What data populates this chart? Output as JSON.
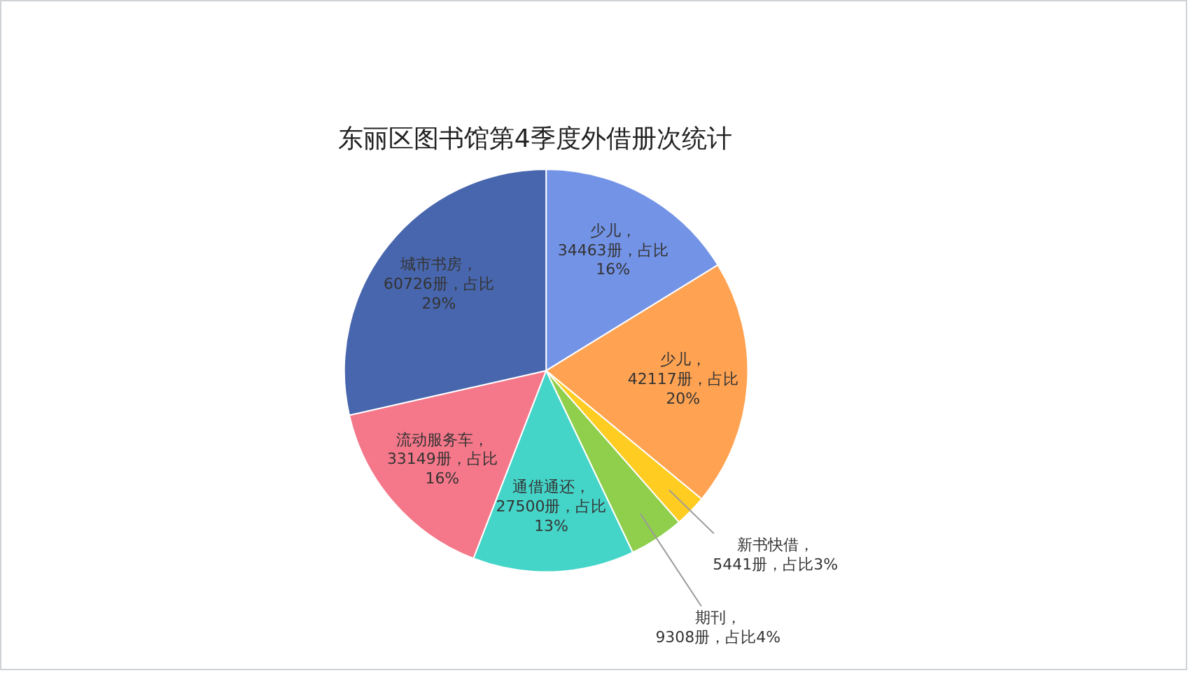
{
  "chart_data": {
    "type": "pie",
    "title": "东丽区图书馆第4季度外借册次统计",
    "categories": [
      "少儿",
      "少儿",
      "新书快借",
      "期刊",
      "通借通还",
      "流动服务车",
      "城市书房"
    ],
    "values": [
      34463,
      42117,
      5441,
      9308,
      27500,
      33149,
      60726
    ],
    "colors": [
      "#7393e6",
      "#ffa353",
      "#ffcc22",
      "#8fcf4c",
      "#45d4c8",
      "#f5788a",
      "#4866ad"
    ],
    "value_labels": [
      "，\n34463册，占比\n16%",
      "，\n42117册，占比\n20%",
      "，\n5441册，占比3%",
      "，\n9308册，占比4%",
      "，\n27500册，占比\n13%",
      "，\n33149册，占比\n16%",
      "，\n60726册，占比\n29%"
    ]
  }
}
